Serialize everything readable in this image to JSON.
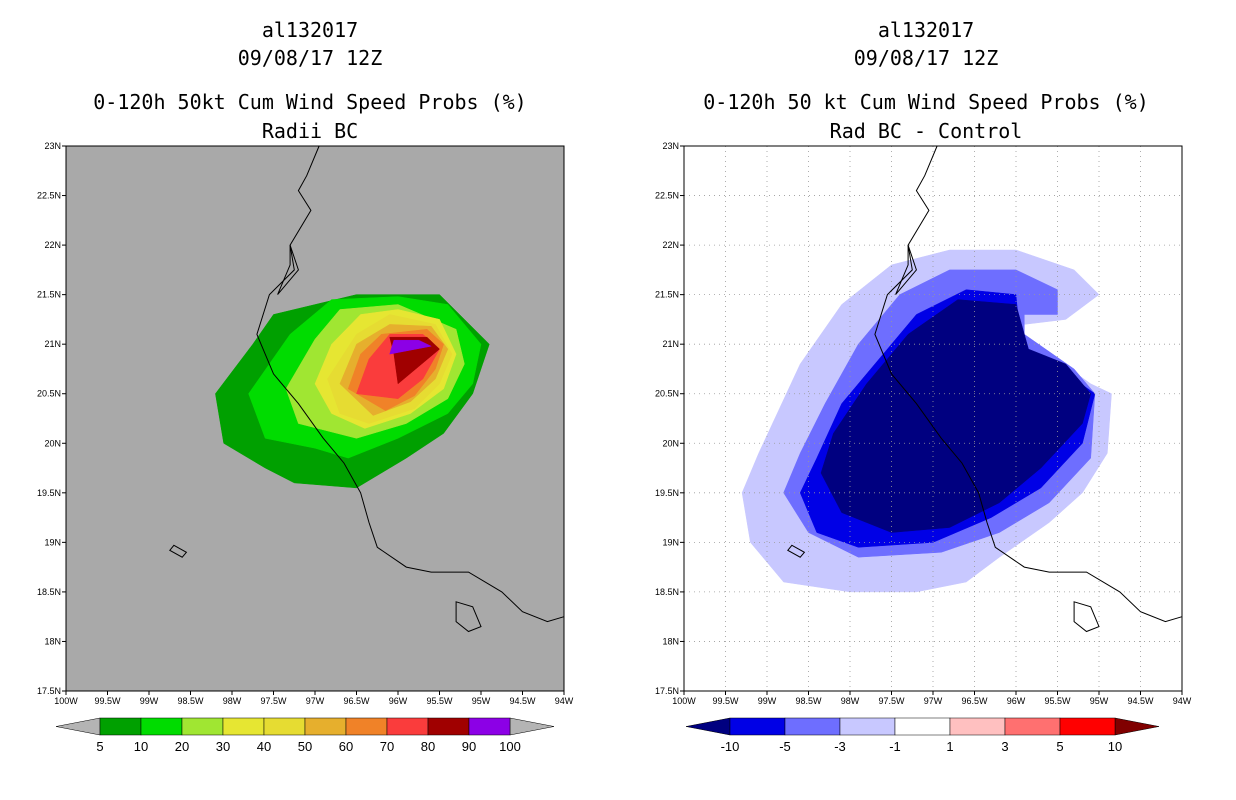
{
  "left": {
    "storm_id": "al132017",
    "datetime": "09/08/17 12Z",
    "title": "0-120h 50kt Cum Wind Speed Probs (%)",
    "subtitle": "Radii BC",
    "colorbar": {
      "labels": [
        "5",
        "10",
        "20",
        "30",
        "40",
        "50",
        "60",
        "70",
        "80",
        "90",
        "100"
      ],
      "colors": [
        "#00a000",
        "#00dc00",
        "#a0e632",
        "#e6e632",
        "#e6dc32",
        "#e6af2d",
        "#f08228",
        "#fa3c3c",
        "#a00000",
        "#8c00e6"
      ],
      "under_color": "#b4b4b4",
      "over_color": "#b4b4b4"
    },
    "background_color": "#a9a9a9"
  },
  "right": {
    "storm_id": "al132017",
    "datetime": "09/08/17 12Z",
    "title": "0-120h 50 kt Cum Wind Speed Probs (%)",
    "subtitle": "Rad BC - Control",
    "colorbar": {
      "labels": [
        "-10",
        "-5",
        "-3",
        "-1",
        "1",
        "3",
        "5",
        "10"
      ],
      "colors": [
        "#0000e6",
        "#6e6eff",
        "#c8c8ff",
        "#ffffff",
        "#ffc0c0",
        "#ff7070",
        "#ff0000"
      ],
      "under_color": "#000080",
      "over_color": "#800000"
    },
    "background_color": "#ffffff"
  },
  "axes": {
    "lat_labels": [
      "23N",
      "22.5N",
      "22N",
      "21.5N",
      "21N",
      "20.5N",
      "20N",
      "19.5N",
      "19N",
      "18.5N",
      "18N",
      "17.5N"
    ],
    "lon_labels": [
      "100W",
      "99.5W",
      "99W",
      "98.5W",
      "98W",
      "97.5W",
      "97W",
      "96.5W",
      "96W",
      "95.5W",
      "95W",
      "94.5W",
      "94W"
    ],
    "lat_range": [
      17.5,
      23
    ],
    "lon_range": [
      -100,
      -94
    ]
  },
  "left_fields": [
    {
      "color": "#00a000",
      "pts": [
        [
          -97.25,
          19.6
        ],
        [
          -96.5,
          19.55
        ],
        [
          -95.9,
          19.85
        ],
        [
          -95.45,
          20.1
        ],
        [
          -95.1,
          20.5
        ],
        [
          -94.9,
          21.0
        ],
        [
          -95.2,
          21.25
        ],
        [
          -95.5,
          21.5
        ],
        [
          -96.5,
          21.5
        ],
        [
          -97.5,
          21.3
        ],
        [
          -97.75,
          21.0
        ],
        [
          -98.2,
          20.5
        ],
        [
          -98.1,
          20.0
        ],
        [
          -97.6,
          19.75
        ]
      ]
    },
    {
      "color": "#00dc00",
      "pts": [
        [
          -96.6,
          19.85
        ],
        [
          -96.0,
          20.05
        ],
        [
          -95.4,
          20.3
        ],
        [
          -95.1,
          20.6
        ],
        [
          -95.0,
          21.0
        ],
        [
          -95.4,
          21.4
        ],
        [
          -96.0,
          21.48
        ],
        [
          -96.8,
          21.45
        ],
        [
          -97.3,
          21.1
        ],
        [
          -97.8,
          20.5
        ],
        [
          -97.6,
          20.05
        ],
        [
          -97.0,
          19.95
        ]
      ]
    },
    {
      "color": "#a0e632",
      "pts": [
        [
          -96.5,
          20.05
        ],
        [
          -95.9,
          20.2
        ],
        [
          -95.4,
          20.45
        ],
        [
          -95.2,
          20.8
        ],
        [
          -95.3,
          21.15
        ],
        [
          -96.0,
          21.4
        ],
        [
          -96.7,
          21.35
        ],
        [
          -97.0,
          21.05
        ],
        [
          -97.35,
          20.55
        ],
        [
          -97.2,
          20.2
        ]
      ]
    },
    {
      "color": "#e6e632",
      "pts": [
        [
          -96.4,
          20.15
        ],
        [
          -95.85,
          20.3
        ],
        [
          -95.45,
          20.55
        ],
        [
          -95.3,
          20.9
        ],
        [
          -95.5,
          21.25
        ],
        [
          -96.0,
          21.35
        ],
        [
          -96.45,
          21.3
        ],
        [
          -96.8,
          21.0
        ],
        [
          -97.0,
          20.6
        ],
        [
          -96.8,
          20.3
        ]
      ]
    },
    {
      "color": "#e6dc32",
      "pts": [
        [
          -96.35,
          20.2
        ],
        [
          -95.8,
          20.35
        ],
        [
          -95.5,
          20.6
        ],
        [
          -95.35,
          20.9
        ],
        [
          -95.55,
          21.2
        ],
        [
          -96.1,
          21.3
        ],
        [
          -96.5,
          21.1
        ],
        [
          -96.85,
          20.65
        ],
        [
          -96.7,
          20.3
        ]
      ]
    },
    {
      "color": "#e6af2d",
      "pts": [
        [
          -96.3,
          20.28
        ],
        [
          -95.85,
          20.42
        ],
        [
          -95.55,
          20.65
        ],
        [
          -95.4,
          20.95
        ],
        [
          -95.6,
          21.18
        ],
        [
          -96.1,
          21.2
        ],
        [
          -96.5,
          21.0
        ],
        [
          -96.7,
          20.6
        ]
      ]
    },
    {
      "color": "#f08228",
      "pts": [
        [
          -96.15,
          20.33
        ],
        [
          -95.8,
          20.48
        ],
        [
          -95.55,
          20.75
        ],
        [
          -95.45,
          21.0
        ],
        [
          -95.65,
          21.15
        ],
        [
          -96.2,
          21.1
        ],
        [
          -96.45,
          20.9
        ],
        [
          -96.6,
          20.55
        ]
      ]
    },
    {
      "color": "#fa3c3c",
      "pts": [
        [
          -96.0,
          20.45
        ],
        [
          -95.7,
          20.65
        ],
        [
          -95.5,
          20.95
        ],
        [
          -95.7,
          21.1
        ],
        [
          -96.1,
          21.1
        ],
        [
          -96.35,
          20.85
        ],
        [
          -96.5,
          20.5
        ]
      ]
    },
    {
      "color": "#a00000",
      "pts": [
        [
          -96.0,
          20.6
        ],
        [
          -95.5,
          20.95
        ],
        [
          -95.65,
          21.07
        ],
        [
          -96.1,
          21.07
        ],
        [
          -96.05,
          20.9
        ]
      ]
    },
    {
      "color": "#8c00e6",
      "pts": [
        [
          -96.1,
          20.9
        ],
        [
          -95.6,
          20.98
        ],
        [
          -95.75,
          21.04
        ],
        [
          -96.05,
          21.04
        ]
      ]
    }
  ],
  "right_fields": [
    {
      "color": "#c8c8ff",
      "pts": [
        [
          -98.0,
          18.5
        ],
        [
          -97.2,
          18.5
        ],
        [
          -96.6,
          18.6
        ],
        [
          -96.2,
          18.85
        ],
        [
          -95.6,
          19.2
        ],
        [
          -95.2,
          19.5
        ],
        [
          -94.9,
          19.9
        ],
        [
          -94.85,
          20.5
        ],
        [
          -95.1,
          20.6
        ],
        [
          -95.6,
          20.9
        ],
        [
          -95.9,
          21.1
        ],
        [
          -95.9,
          21.2
        ],
        [
          -95.4,
          21.25
        ],
        [
          -95.0,
          21.5
        ],
        [
          -95.3,
          21.75
        ],
        [
          -96.0,
          21.95
        ],
        [
          -96.8,
          21.95
        ],
        [
          -97.5,
          21.8
        ],
        [
          -98.1,
          21.4
        ],
        [
          -98.6,
          20.8
        ],
        [
          -99.1,
          19.9
        ],
        [
          -99.3,
          19.5
        ],
        [
          -99.2,
          19.0
        ],
        [
          -98.8,
          18.6
        ]
      ]
    },
    {
      "color": "#6e6eff",
      "pts": [
        [
          -97.9,
          18.85
        ],
        [
          -96.9,
          18.9
        ],
        [
          -96.2,
          19.1
        ],
        [
          -95.6,
          19.4
        ],
        [
          -95.1,
          19.85
        ],
        [
          -95.05,
          20.5
        ],
        [
          -95.3,
          20.75
        ],
        [
          -95.9,
          21.1
        ],
        [
          -95.9,
          21.3
        ],
        [
          -95.5,
          21.3
        ],
        [
          -95.5,
          21.55
        ],
        [
          -96.0,
          21.75
        ],
        [
          -96.8,
          21.75
        ],
        [
          -97.4,
          21.5
        ],
        [
          -97.9,
          21.0
        ],
        [
          -98.3,
          20.4
        ],
        [
          -98.6,
          19.9
        ],
        [
          -98.8,
          19.5
        ],
        [
          -98.5,
          19.1
        ]
      ]
    },
    {
      "color": "#0000e6",
      "pts": [
        [
          -97.9,
          18.95
        ],
        [
          -97.0,
          19.0
        ],
        [
          -96.3,
          19.25
        ],
        [
          -95.7,
          19.55
        ],
        [
          -95.2,
          20.0
        ],
        [
          -95.05,
          20.5
        ],
        [
          -95.3,
          20.65
        ],
        [
          -95.8,
          20.9
        ],
        [
          -95.95,
          21.05
        ],
        [
          -96.0,
          21.5
        ],
        [
          -96.6,
          21.55
        ],
        [
          -97.2,
          21.3
        ],
        [
          -97.7,
          20.8
        ],
        [
          -98.1,
          20.4
        ],
        [
          -98.4,
          19.85
        ],
        [
          -98.6,
          19.5
        ],
        [
          -98.4,
          19.1
        ]
      ]
    },
    {
      "color": "#000080",
      "pts": [
        [
          -97.5,
          19.1
        ],
        [
          -96.8,
          19.15
        ],
        [
          -96.2,
          19.4
        ],
        [
          -95.7,
          19.75
        ],
        [
          -95.2,
          20.2
        ],
        [
          -95.1,
          20.5
        ],
        [
          -95.4,
          20.8
        ],
        [
          -95.85,
          20.95
        ],
        [
          -96.0,
          21.4
        ],
        [
          -96.7,
          21.45
        ],
        [
          -97.3,
          21.1
        ],
        [
          -97.8,
          20.6
        ],
        [
          -98.2,
          20.1
        ],
        [
          -98.35,
          19.7
        ],
        [
          -98.1,
          19.3
        ]
      ]
    }
  ],
  "coastline": [
    [
      -96.95,
      23.0
    ],
    [
      -97.1,
      22.7
    ],
    [
      -97.2,
      22.55
    ],
    [
      -97.05,
      22.35
    ],
    [
      -97.3,
      22.0
    ],
    [
      -97.25,
      21.75
    ],
    [
      -97.55,
      21.5
    ],
    [
      -97.7,
      21.1
    ],
    [
      -97.5,
      20.7
    ],
    [
      -97.2,
      20.4
    ],
    [
      -96.9,
      20.05
    ],
    [
      -96.65,
      19.8
    ],
    [
      -96.45,
      19.5
    ],
    [
      -96.35,
      19.2
    ],
    [
      -96.25,
      18.95
    ],
    [
      -95.9,
      18.75
    ],
    [
      -95.6,
      18.7
    ],
    [
      -95.15,
      18.7
    ],
    [
      -94.75,
      18.5
    ],
    [
      -94.5,
      18.3
    ],
    [
      -94.2,
      18.2
    ],
    [
      -94.0,
      18.25
    ]
  ],
  "lagoon": [
    [
      -97.3,
      22.0
    ],
    [
      -97.2,
      21.75
    ],
    [
      -97.45,
      21.5
    ],
    [
      -97.3,
      21.8
    ],
    [
      -97.3,
      22.0
    ]
  ],
  "islands": [
    [
      [
        -98.7,
        18.97
      ],
      [
        -98.55,
        18.9
      ],
      [
        -98.6,
        18.85
      ],
      [
        -98.75,
        18.92
      ],
      [
        -98.7,
        18.97
      ]
    ],
    [
      [
        -95.3,
        18.4
      ],
      [
        -95.1,
        18.35
      ],
      [
        -95.0,
        18.15
      ],
      [
        -95.15,
        18.1
      ],
      [
        -95.3,
        18.2
      ],
      [
        -95.3,
        18.4
      ]
    ]
  ]
}
